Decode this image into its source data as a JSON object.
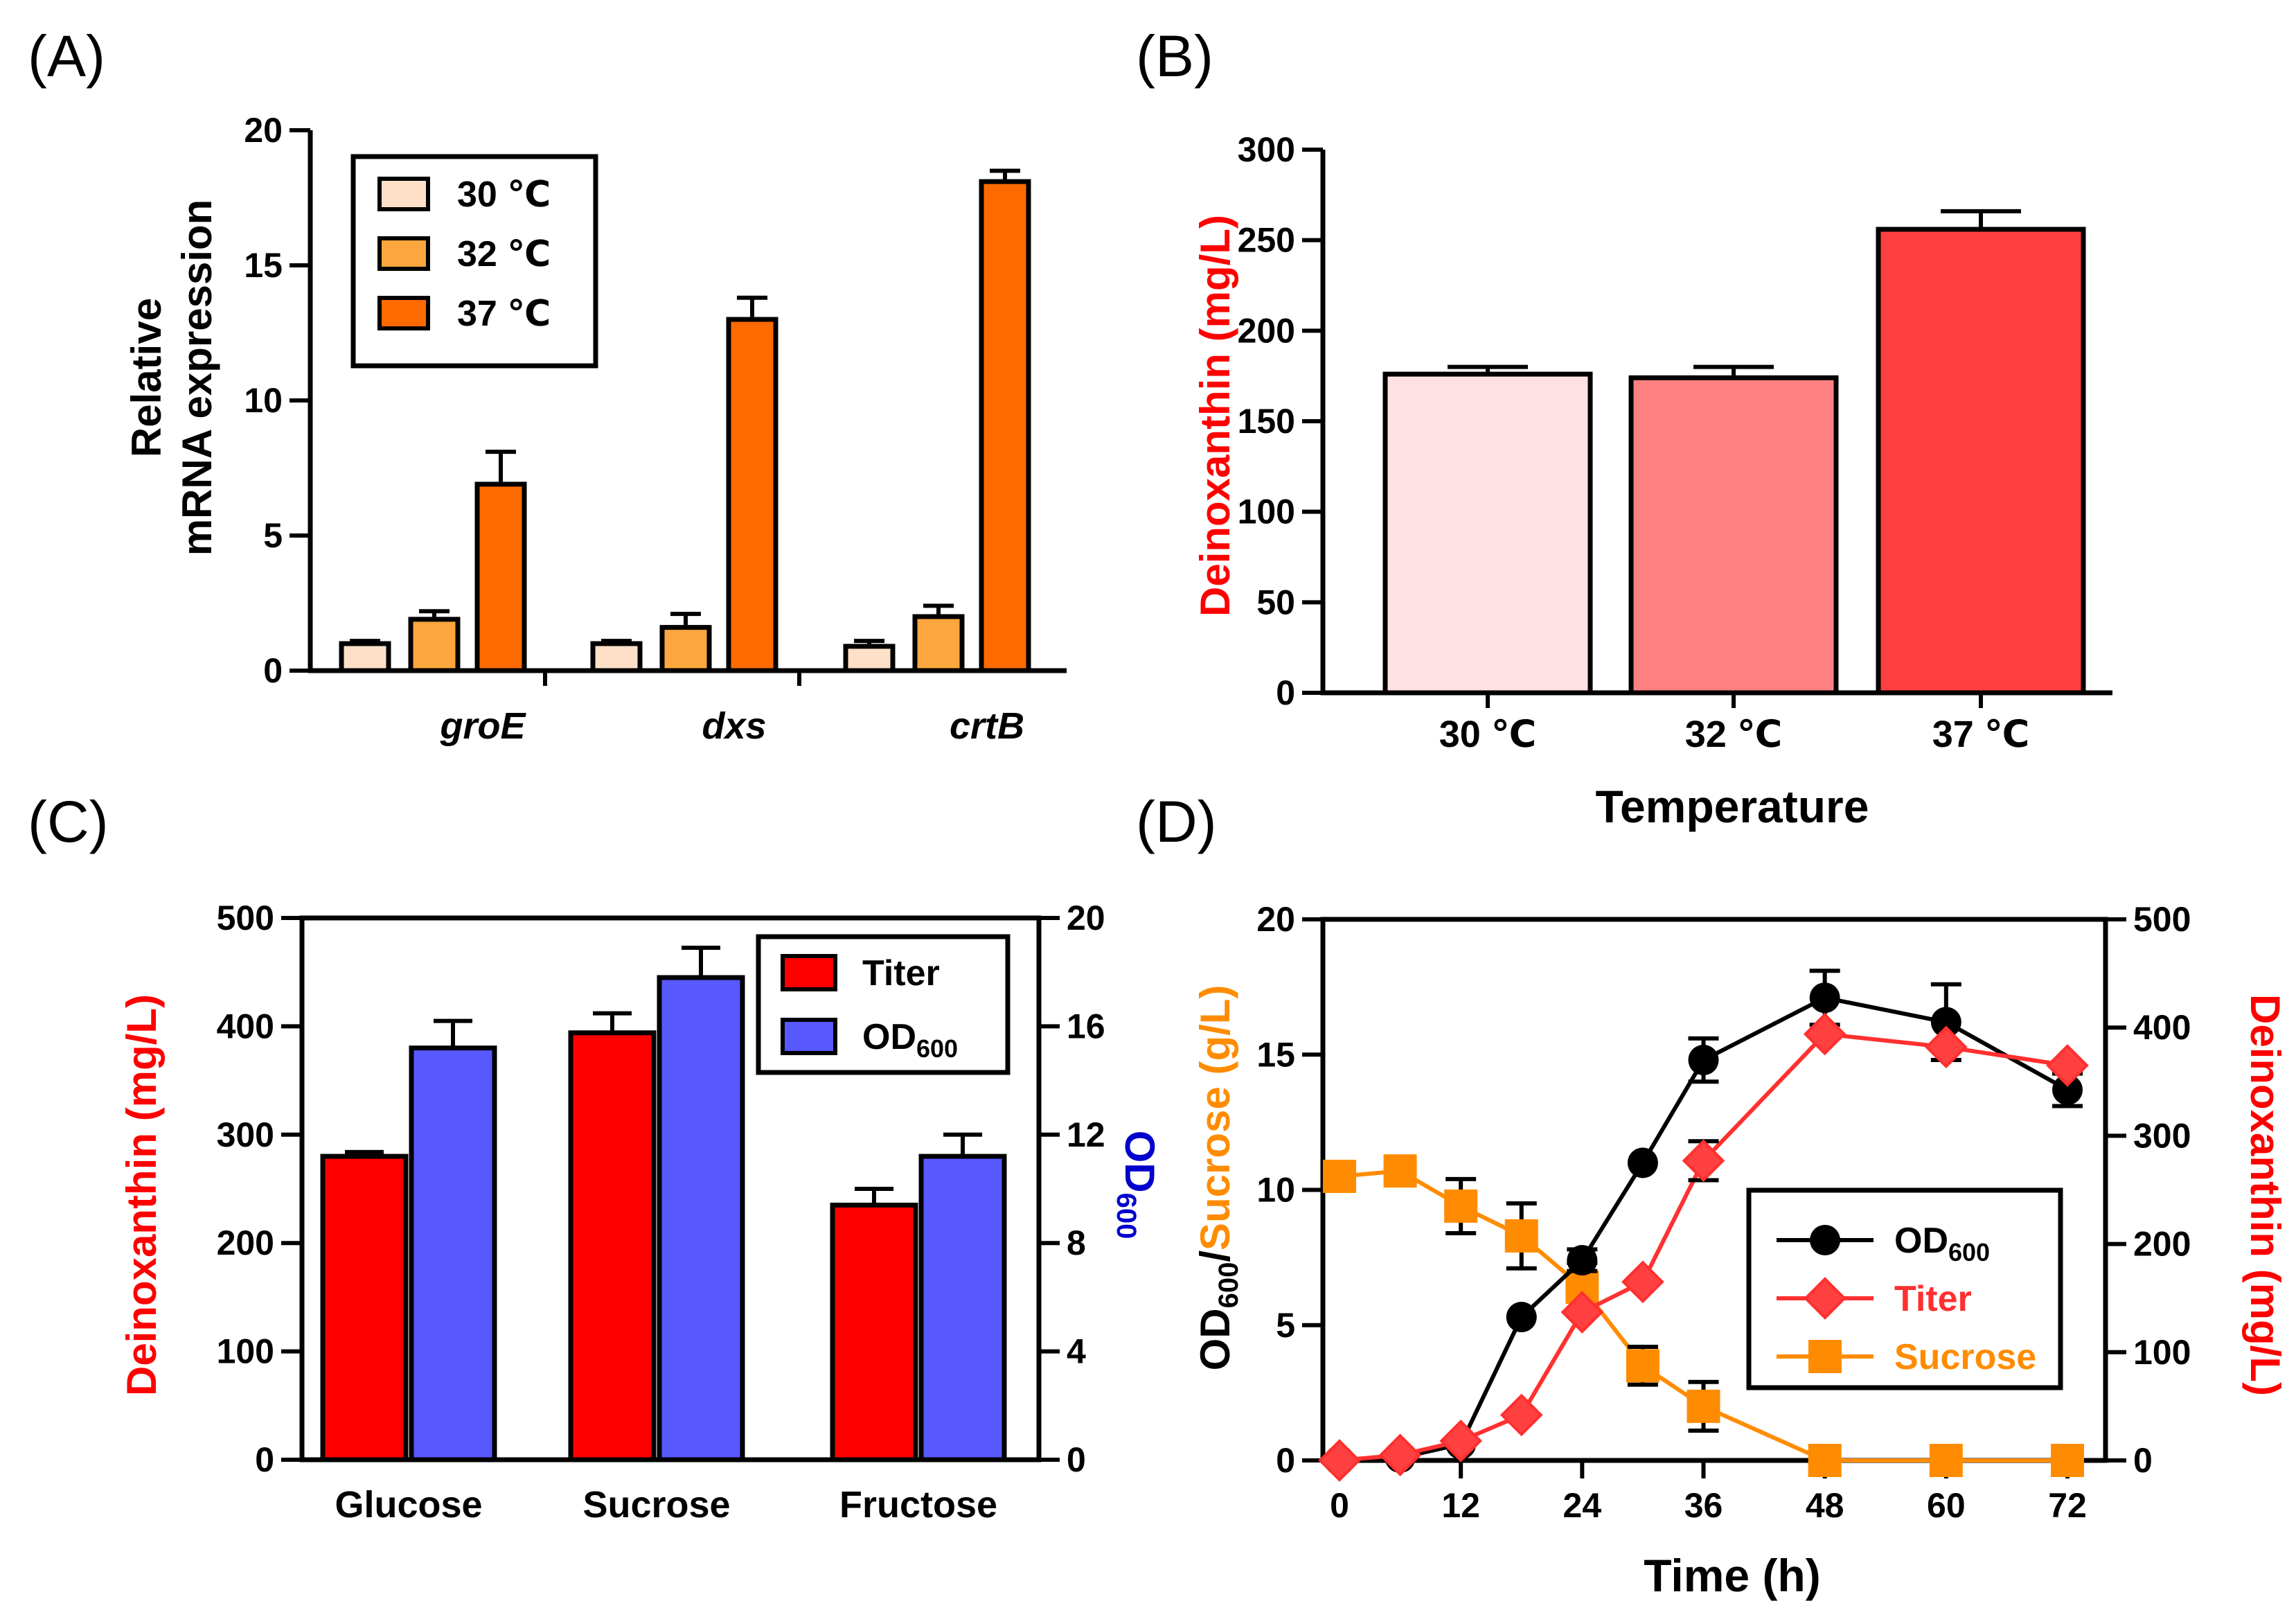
{
  "figure": {
    "panel_labels": [
      "(A)",
      "(B)",
      "(C)",
      "(D)"
    ]
  },
  "chart_data": [
    {
      "panel": "A",
      "type": "bar",
      "title": "",
      "ylabel_lines": [
        "Relative",
        "mRNA expression"
      ],
      "xlabel": "",
      "ylim": [
        0,
        20
      ],
      "yticks": [
        0,
        5,
        10,
        15,
        20
      ],
      "categories": [
        "groE",
        "dxs",
        "crtB"
      ],
      "series": [
        {
          "name": "30 ℃",
          "color": "#FDE0C7",
          "values": [
            1.0,
            1.0,
            0.9
          ],
          "errors": [
            0.1,
            0.1,
            0.2
          ]
        },
        {
          "name": "32 ℃",
          "color": "#FBA63F",
          "values": [
            1.9,
            1.6,
            2.0
          ],
          "errors": [
            0.3,
            0.5,
            0.4
          ]
        },
        {
          "name": "37 ℃",
          "color": "#FF6A00",
          "values": [
            6.9,
            13.0,
            18.1
          ],
          "errors": [
            1.2,
            0.8,
            0.4
          ]
        }
      ],
      "legend": "top-left"
    },
    {
      "panel": "B",
      "type": "bar",
      "title": "",
      "ylabel": "Deinoxanthin (mg/L)",
      "xlabel": "Temperature",
      "ylim": [
        0,
        300
      ],
      "yticks": [
        0,
        50,
        100,
        150,
        200,
        250,
        300
      ],
      "categories": [
        "30 ℃",
        "32 ℃",
        "37 ℃"
      ],
      "values": [
        176,
        174,
        256
      ],
      "errors": [
        4,
        6,
        10
      ],
      "colors": [
        "#FFE1E4",
        "#FF8080",
        "#FF4040"
      ]
    },
    {
      "panel": "C",
      "type": "bar",
      "title": "",
      "ylabel": "Deinoxanthin  (mg/L)",
      "y2label": "OD",
      "y2label_sub": "600",
      "xlabel": "",
      "ylim": [
        0,
        500
      ],
      "yticks": [
        0,
        100,
        200,
        300,
        400,
        500
      ],
      "y2lim": [
        0,
        20
      ],
      "y2ticks": [
        0,
        4,
        8,
        12,
        16,
        20
      ],
      "categories": [
        "Glucose",
        "Sucrose",
        "Fructose"
      ],
      "series": [
        {
          "name": "Titer",
          "axis": "left",
          "color": "#FF0000",
          "values": [
            280,
            394,
            235
          ],
          "errors": [
            4,
            18,
            15
          ]
        },
        {
          "name": "OD",
          "name_sub": "600",
          "axis": "right",
          "color": "#5858FF",
          "values": [
            15.2,
            17.8,
            11.2
          ],
          "errors": [
            1.0,
            1.1,
            0.8
          ]
        }
      ],
      "legend": "top-right"
    },
    {
      "panel": "D",
      "type": "line",
      "title": "",
      "xlabel": "Time (h)",
      "ylabel_parts": {
        "od": "OD",
        "sub": "600",
        "slash": "/",
        "sucrose": "Sucrose (g/L)"
      },
      "y2label": "Deinoxanthin (mg/L)",
      "xlim": [
        0,
        72
      ],
      "xticks": [
        0,
        12,
        24,
        36,
        48,
        60,
        72
      ],
      "ylim": [
        0,
        20
      ],
      "yticks": [
        0,
        5,
        10,
        15,
        20
      ],
      "y2lim": [
        0,
        500
      ],
      "y2ticks": [
        0,
        100,
        200,
        300,
        400,
        500
      ],
      "series": [
        {
          "name": "OD",
          "name_sub": "600",
          "axis": "left",
          "color": "#000000",
          "marker": "circle",
          "x": [
            0,
            6,
            12,
            18,
            24,
            30,
            36,
            48,
            60,
            72
          ],
          "y": [
            0.0,
            0.1,
            0.6,
            5.3,
            7.4,
            11.0,
            14.8,
            17.1,
            16.2,
            13.7
          ],
          "errors": [
            0,
            0,
            0,
            0,
            0.4,
            0,
            0.8,
            1.0,
            1.4,
            0.6
          ]
        },
        {
          "name": "Titer",
          "axis": "right",
          "color": "#FF3030",
          "marker": "diamond",
          "x": [
            0,
            6,
            12,
            18,
            24,
            30,
            36,
            48,
            60,
            72
          ],
          "y": [
            0,
            5,
            18,
            42,
            137,
            165,
            277,
            394,
            382,
            365
          ],
          "errors": [
            0,
            0,
            0,
            0,
            0,
            0,
            18,
            0,
            0,
            0
          ]
        },
        {
          "name": "Sucrose",
          "axis": "left",
          "color": "#FF8C00",
          "marker": "square",
          "x": [
            0,
            6,
            12,
            18,
            24,
            30,
            36,
            48,
            60,
            72
          ],
          "y": [
            10.5,
            10.7,
            9.4,
            8.3,
            6.4,
            3.5,
            2.0,
            0.0,
            0.0,
            0.0
          ],
          "errors": [
            0,
            0.3,
            1.0,
            1.2,
            0.9,
            0.7,
            0.9,
            0,
            0,
            0
          ]
        }
      ],
      "legend": "center-right"
    }
  ]
}
